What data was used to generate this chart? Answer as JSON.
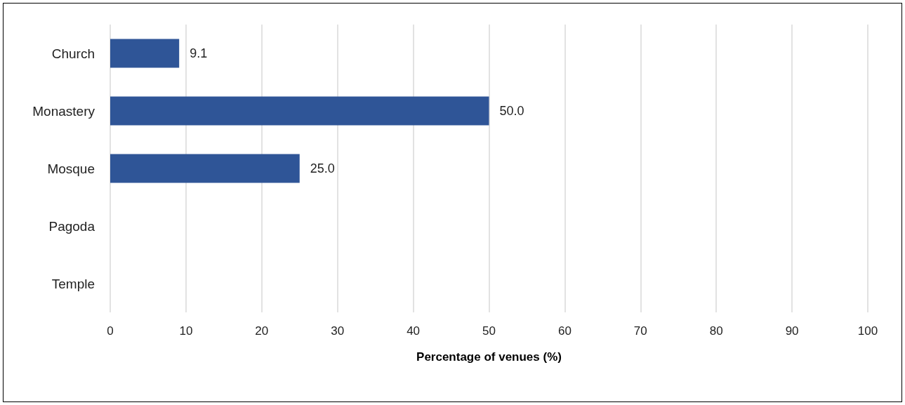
{
  "chart_data": {
    "type": "bar",
    "orientation": "horizontal",
    "xlabel": "Percentage of venues (%)",
    "categories": [
      "Church",
      "Monastery",
      "Mosque",
      "Pagoda",
      "Temple"
    ],
    "values": [
      9.1,
      50.0,
      25.0,
      null,
      null
    ],
    "value_labels": [
      "9.1",
      "50.0",
      "25.0",
      null,
      null
    ],
    "color": "#2f5597",
    "xlim": [
      0,
      100
    ],
    "xticks": [
      0,
      10,
      20,
      30,
      40,
      50,
      60,
      70,
      80,
      90,
      100
    ],
    "grid": "x"
  }
}
